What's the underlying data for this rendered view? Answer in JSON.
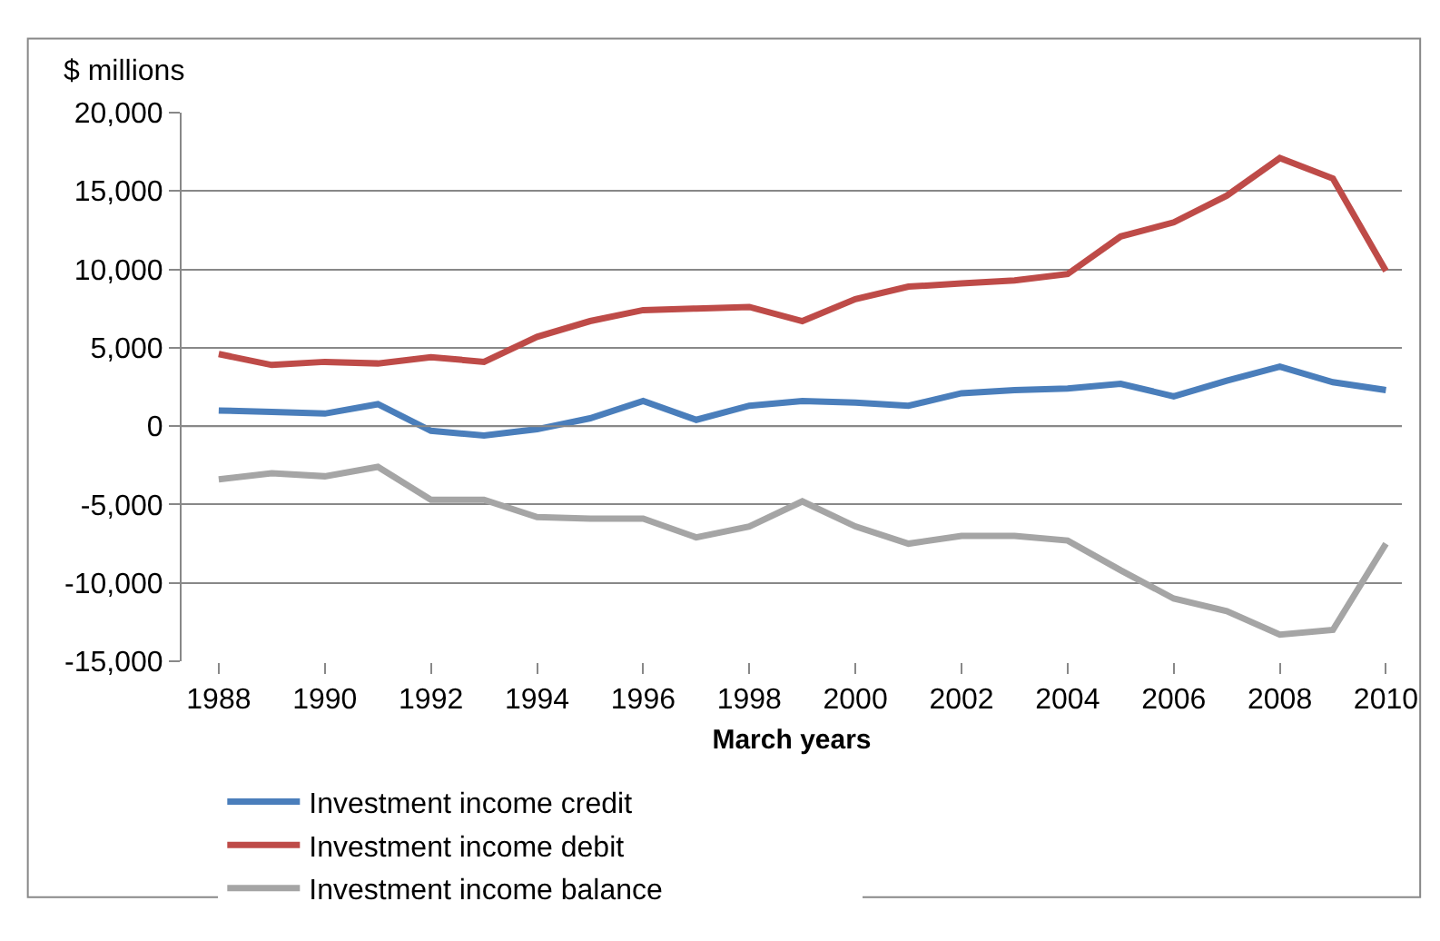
{
  "chart_data": {
    "type": "line",
    "ylabel": "$ millions",
    "xlabel": "March years",
    "x": [
      1988,
      1989,
      1990,
      1991,
      1992,
      1993,
      1994,
      1995,
      1996,
      1997,
      1998,
      1999,
      2000,
      2001,
      2002,
      2003,
      2004,
      2005,
      2006,
      2007,
      2008,
      2009,
      2010
    ],
    "series": [
      {
        "name": "Investment income credit",
        "color": "#4a7ebb",
        "values": [
          1000,
          900,
          800,
          1400,
          -300,
          -600,
          -200,
          500,
          1600,
          400,
          1300,
          1600,
          1500,
          1300,
          2100,
          2300,
          2400,
          2700,
          1900,
          2900,
          3800,
          2800,
          2300
        ]
      },
      {
        "name": "Investment income debit",
        "color": "#be4b48",
        "values": [
          4600,
          3900,
          4100,
          4000,
          4400,
          4100,
          5700,
          6700,
          7400,
          7500,
          7600,
          6700,
          8100,
          8900,
          9100,
          9300,
          9700,
          12100,
          13000,
          14700,
          17100,
          15800,
          9900
        ]
      },
      {
        "name": "Investment income balance",
        "color": "#a5a5a5",
        "values": [
          -3400,
          -3000,
          -3200,
          -2600,
          -4700,
          -4700,
          -5800,
          -5900,
          -5900,
          -7100,
          -6400,
          -4800,
          -6400,
          -7500,
          -7000,
          -7000,
          -7300,
          -9200,
          -11000,
          -11800,
          -13300,
          -13000,
          -7500
        ]
      }
    ],
    "xlim": [
      1987.3,
      2010.3
    ],
    "xticks": [
      1988,
      1990,
      1992,
      1994,
      1996,
      1998,
      2000,
      2002,
      2004,
      2006,
      2008,
      2010
    ],
    "ylim": [
      -15000,
      20000
    ],
    "yticks": [
      {
        "value": -15000,
        "label": "-15,000"
      },
      {
        "value": -10000,
        "label": "-10,000"
      },
      {
        "value": -5000,
        "label": "-5,000"
      },
      {
        "value": 0,
        "label": "0"
      },
      {
        "value": 5000,
        "label": "5,000"
      },
      {
        "value": 10000,
        "label": "10,000"
      },
      {
        "value": 15000,
        "label": "15,000"
      },
      {
        "value": 20000,
        "label": "20,000"
      }
    ],
    "grid": "y",
    "legend": "bottom",
    "marker": "none",
    "line_style": "solid"
  }
}
